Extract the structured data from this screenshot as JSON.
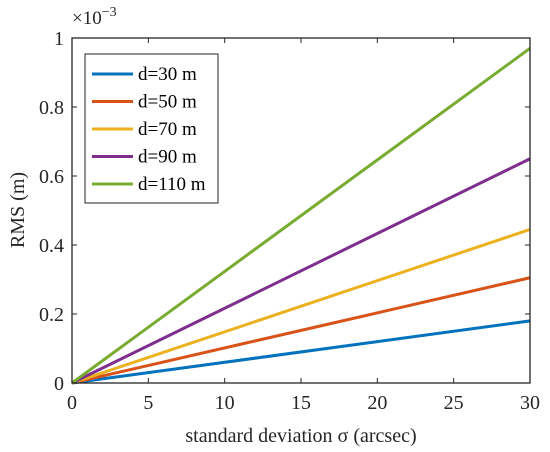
{
  "chart_data": {
    "type": "line",
    "xlabel": "standard deviation σ (arcsec)",
    "ylabel": "RMS (m)",
    "xlim": [
      0,
      30
    ],
    "ylim": [
      0,
      1
    ],
    "y_multiplier": {
      "base": "×10",
      "exponent": "−3"
    },
    "xticks": [
      0,
      5,
      10,
      15,
      20,
      25,
      30
    ],
    "xtick_labels": [
      "0",
      "5",
      "10",
      "15",
      "20",
      "25",
      "30"
    ],
    "yticks": [
      0,
      0.2,
      0.4,
      0.6,
      0.8,
      1
    ],
    "ytick_labels": [
      "0",
      "0.2",
      "0.4",
      "0.6",
      "0.8",
      "1"
    ],
    "grid": false,
    "legend_position": "top-left",
    "series": [
      {
        "name": "d=30 m",
        "color": "#0072BD",
        "x": [
          0,
          30
        ],
        "y": [
          0,
          0.18
        ]
      },
      {
        "name": "d=50 m",
        "color": "#D95319",
        "x": [
          0,
          30
        ],
        "y": [
          0,
          0.305
        ]
      },
      {
        "name": "d=70 m",
        "color": "#EDB120",
        "x": [
          0,
          30
        ],
        "y": [
          0,
          0.445
        ]
      },
      {
        "name": "d=90 m",
        "color": "#7E2F8E",
        "x": [
          0,
          30
        ],
        "y": [
          0,
          0.65
        ]
      },
      {
        "name": "d=110 m",
        "color": "#77AC30",
        "x": [
          0,
          30
        ],
        "y": [
          0,
          0.97
        ]
      }
    ]
  }
}
